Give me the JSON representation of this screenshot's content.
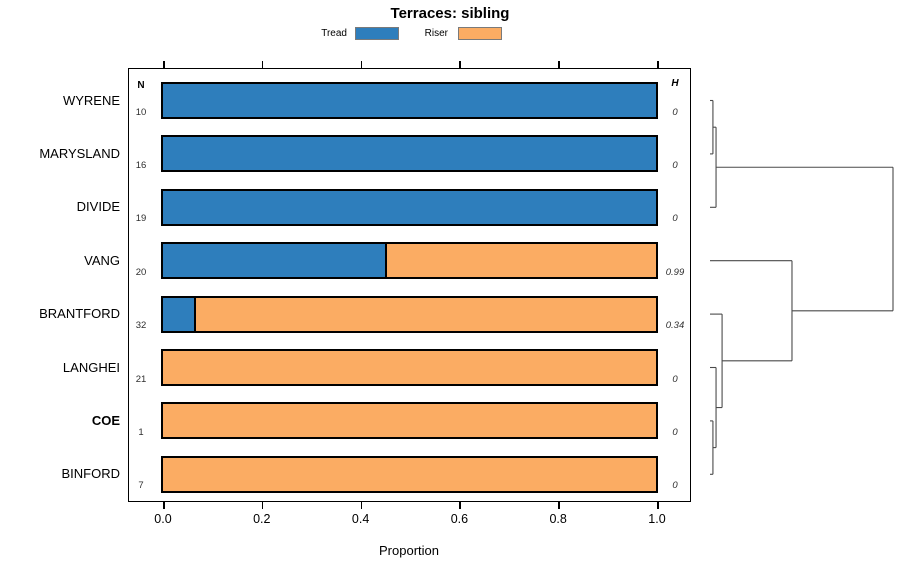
{
  "title": "Terraces: sibling",
  "legend": {
    "items": [
      {
        "label": "Tread",
        "color": "#2E7EBC"
      },
      {
        "label": "Riser",
        "color": "#FBAC63"
      }
    ]
  },
  "table": {
    "n_header": "N",
    "h_header": "H"
  },
  "x_axis": {
    "label": "Proportion",
    "ticks": [
      "0.0",
      "0.2",
      "0.4",
      "0.6",
      "0.8",
      "1.0"
    ]
  },
  "colors": {
    "tread": "#2E7EBC",
    "riser": "#FBAC63",
    "bar_border": "#000000",
    "dendrogram_line": "#4a4a4a"
  },
  "chart_data": {
    "type": "bar",
    "subtype": "horizontal stacked proportion bars with N column, entropy (H) column and right-side dendrogram",
    "title": "Terraces: sibling",
    "xlabel": "Proportion",
    "xlim": [
      0,
      1
    ],
    "x_ticks": [
      0.0,
      0.2,
      0.4,
      0.6,
      0.8,
      1.0
    ],
    "grid": false,
    "legend_position": "top-center",
    "series": [
      {
        "name": "Tread",
        "color": "#2E7EBC",
        "values": [
          1,
          1,
          1,
          0.45,
          0.0625,
          0,
          0,
          0
        ]
      },
      {
        "name": "Riser",
        "color": "#FBAC63",
        "values": [
          0,
          0,
          0,
          0.55,
          0.9375,
          1,
          1,
          1
        ]
      }
    ],
    "categories": [
      "WYRENE",
      "MARYSLAND",
      "DIVIDE",
      "VANG",
      "BRANTFORD",
      "LANGHEI",
      "COE",
      "BINFORD"
    ],
    "rows": [
      {
        "label": "WYRENE",
        "n": 10,
        "tread": 1,
        "riser": 0,
        "h": "0",
        "bold": false
      },
      {
        "label": "MARYSLAND",
        "n": 16,
        "tread": 1,
        "riser": 0,
        "h": "0",
        "bold": false
      },
      {
        "label": "DIVIDE",
        "n": 19,
        "tread": 1,
        "riser": 0,
        "h": "0",
        "bold": false
      },
      {
        "label": "VANG",
        "n": 20,
        "tread": 0.45,
        "riser": 0.55,
        "h": "0.99",
        "bold": false
      },
      {
        "label": "BRANTFORD",
        "n": 32,
        "tread": 0.0625,
        "riser": 0.9375,
        "h": "0.34",
        "bold": false
      },
      {
        "label": "LANGHEI",
        "n": 21,
        "tread": 0,
        "riser": 1,
        "h": "0",
        "bold": false
      },
      {
        "label": "COE",
        "n": 1,
        "tread": 0,
        "riser": 1,
        "h": "0",
        "bold": true
      },
      {
        "label": "BINFORD",
        "n": 7,
        "tread": 0,
        "riser": 1,
        "h": "0",
        "bold": false
      }
    ],
    "dendrogram": {
      "position": "right",
      "leaves": [
        "WYRENE",
        "MARYSLAND",
        "DIVIDE",
        "VANG",
        "BRANTFORD",
        "LANGHEI",
        "COE",
        "BINFORD"
      ],
      "merges": [
        {
          "id": "m1",
          "a": "WYRENE",
          "b": "MARYSLAND",
          "height": 0.016
        },
        {
          "id": "m2",
          "a": "m1",
          "b": "DIVIDE",
          "height": 0.033
        },
        {
          "id": "m3",
          "a": "COE",
          "b": "BINFORD",
          "height": 0.016
        },
        {
          "id": "m4",
          "a": "LANGHEI",
          "b": "m3",
          "height": 0.033
        },
        {
          "id": "m5",
          "a": "BRANTFORD",
          "b": "m4",
          "height": 0.066
        },
        {
          "id": "m6",
          "a": "VANG",
          "b": "m5",
          "height": 0.448
        },
        {
          "id": "root",
          "a": "m2",
          "b": "m6",
          "height": 1.0
        }
      ]
    }
  }
}
